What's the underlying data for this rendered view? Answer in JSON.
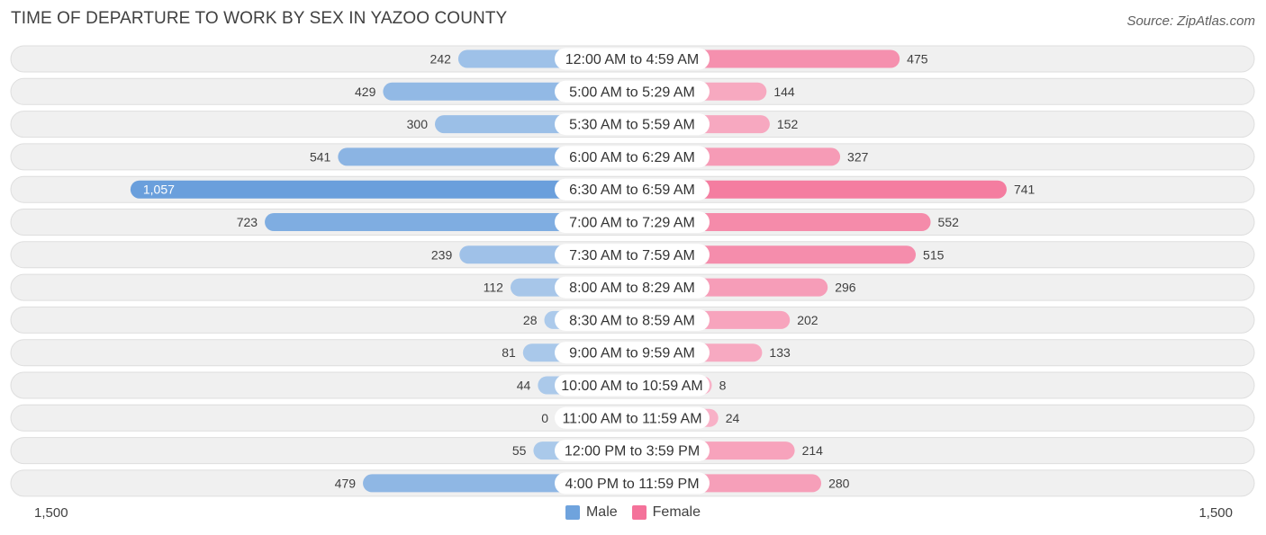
{
  "header": {
    "title": "TIME OF DEPARTURE TO WORK BY SEX IN YAZOO COUNTY",
    "source": "Source: ZipAtlas.com"
  },
  "axis": {
    "left_label": "1,500",
    "right_label": "1,500"
  },
  "legend": [
    {
      "label": "Male",
      "color": "#6fa3dd"
    },
    {
      "label": "Female",
      "color": "#f4729a"
    }
  ],
  "colors": {
    "male_light": "#aecbeb",
    "male_dark": "#6a9fdc",
    "female_light": "#f8b3c8",
    "female_dark": "#f2668f",
    "row_bg": "#f0f0f0",
    "row_border": "#dedede"
  },
  "chart_data": {
    "type": "bar",
    "orientation": "horizontal-diverging",
    "title": "TIME OF DEPARTURE TO WORK BY SEX IN YAZOO COUNTY",
    "xlim": [
      -1500,
      1500
    ],
    "categories": [
      "12:00 AM to 4:59 AM",
      "5:00 AM to 5:29 AM",
      "5:30 AM to 5:59 AM",
      "6:00 AM to 6:29 AM",
      "6:30 AM to 6:59 AM",
      "7:00 AM to 7:29 AM",
      "7:30 AM to 7:59 AM",
      "8:00 AM to 8:29 AM",
      "8:30 AM to 8:59 AM",
      "9:00 AM to 9:59 AM",
      "10:00 AM to 10:59 AM",
      "11:00 AM to 11:59 AM",
      "12:00 PM to 3:59 PM",
      "4:00 PM to 11:59 PM"
    ],
    "series": [
      {
        "name": "Male",
        "values": [
          242,
          429,
          300,
          541,
          1057,
          723,
          239,
          112,
          28,
          81,
          44,
          0,
          55,
          479
        ],
        "labels": [
          "242",
          "429",
          "300",
          "541",
          "1,057",
          "723",
          "239",
          "112",
          "28",
          "81",
          "44",
          "0",
          "55",
          "479"
        ]
      },
      {
        "name": "Female",
        "values": [
          475,
          144,
          152,
          327,
          741,
          552,
          515,
          296,
          202,
          133,
          8,
          24,
          214,
          280
        ],
        "labels": [
          "475",
          "144",
          "152",
          "327",
          "741",
          "552",
          "515",
          "296",
          "202",
          "133",
          "8",
          "24",
          "214",
          "280"
        ]
      }
    ]
  }
}
